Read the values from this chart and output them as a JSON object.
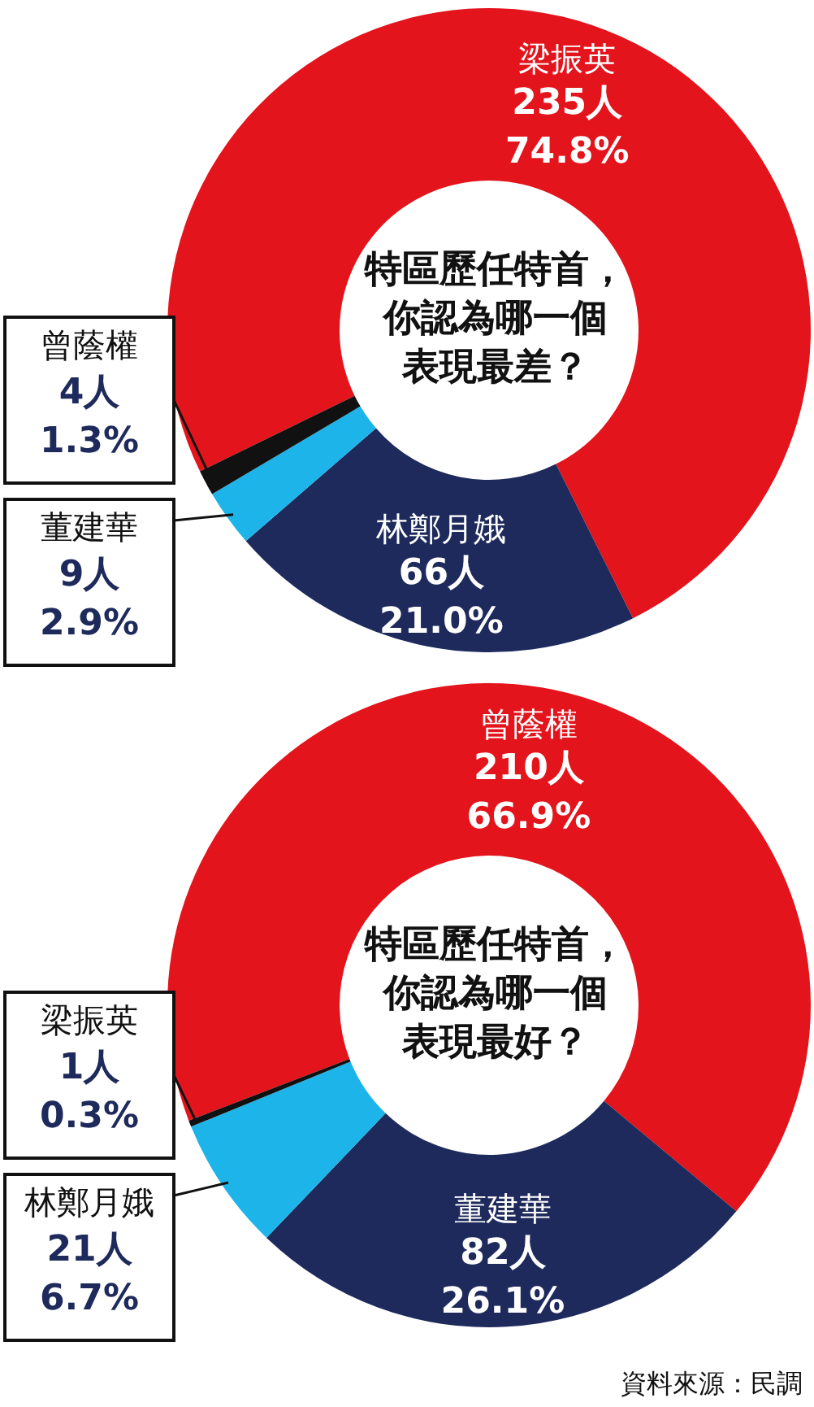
{
  "chart_data": [
    {
      "type": "donut",
      "title": "特區歷任特首，你認為哪一個表現最差？",
      "categories": [
        "梁振英",
        "林鄭月娥",
        "董建華",
        "曾蔭權"
      ],
      "values": [
        235,
        66,
        9,
        4
      ],
      "colors": [
        "#e3141c",
        "#1d2a5b",
        "#1db4ea",
        "#111111"
      ],
      "value_labels": [
        "235人\n74.8%",
        "66人\n21.0%",
        "9人\n2.9%",
        "4人\n1.3%"
      ]
    },
    {
      "type": "donut",
      "title": "特區歷任特首，你認為哪一個表現最好？",
      "categories": [
        "曾蔭權",
        "董建華",
        "林鄭月娥",
        "梁振英"
      ],
      "values": [
        210,
        82,
        21,
        1
      ],
      "colors": [
        "#e3141c",
        "#1d2a5b",
        "#1db4ea",
        "#111111"
      ],
      "value_labels": [
        "210人\n66.9%",
        "82人\n26.1%",
        "21人\n6.7%",
        "1人\n0.3%"
      ],
      "annotations": [
        "資料來源：民調"
      ]
    }
  ]
}
